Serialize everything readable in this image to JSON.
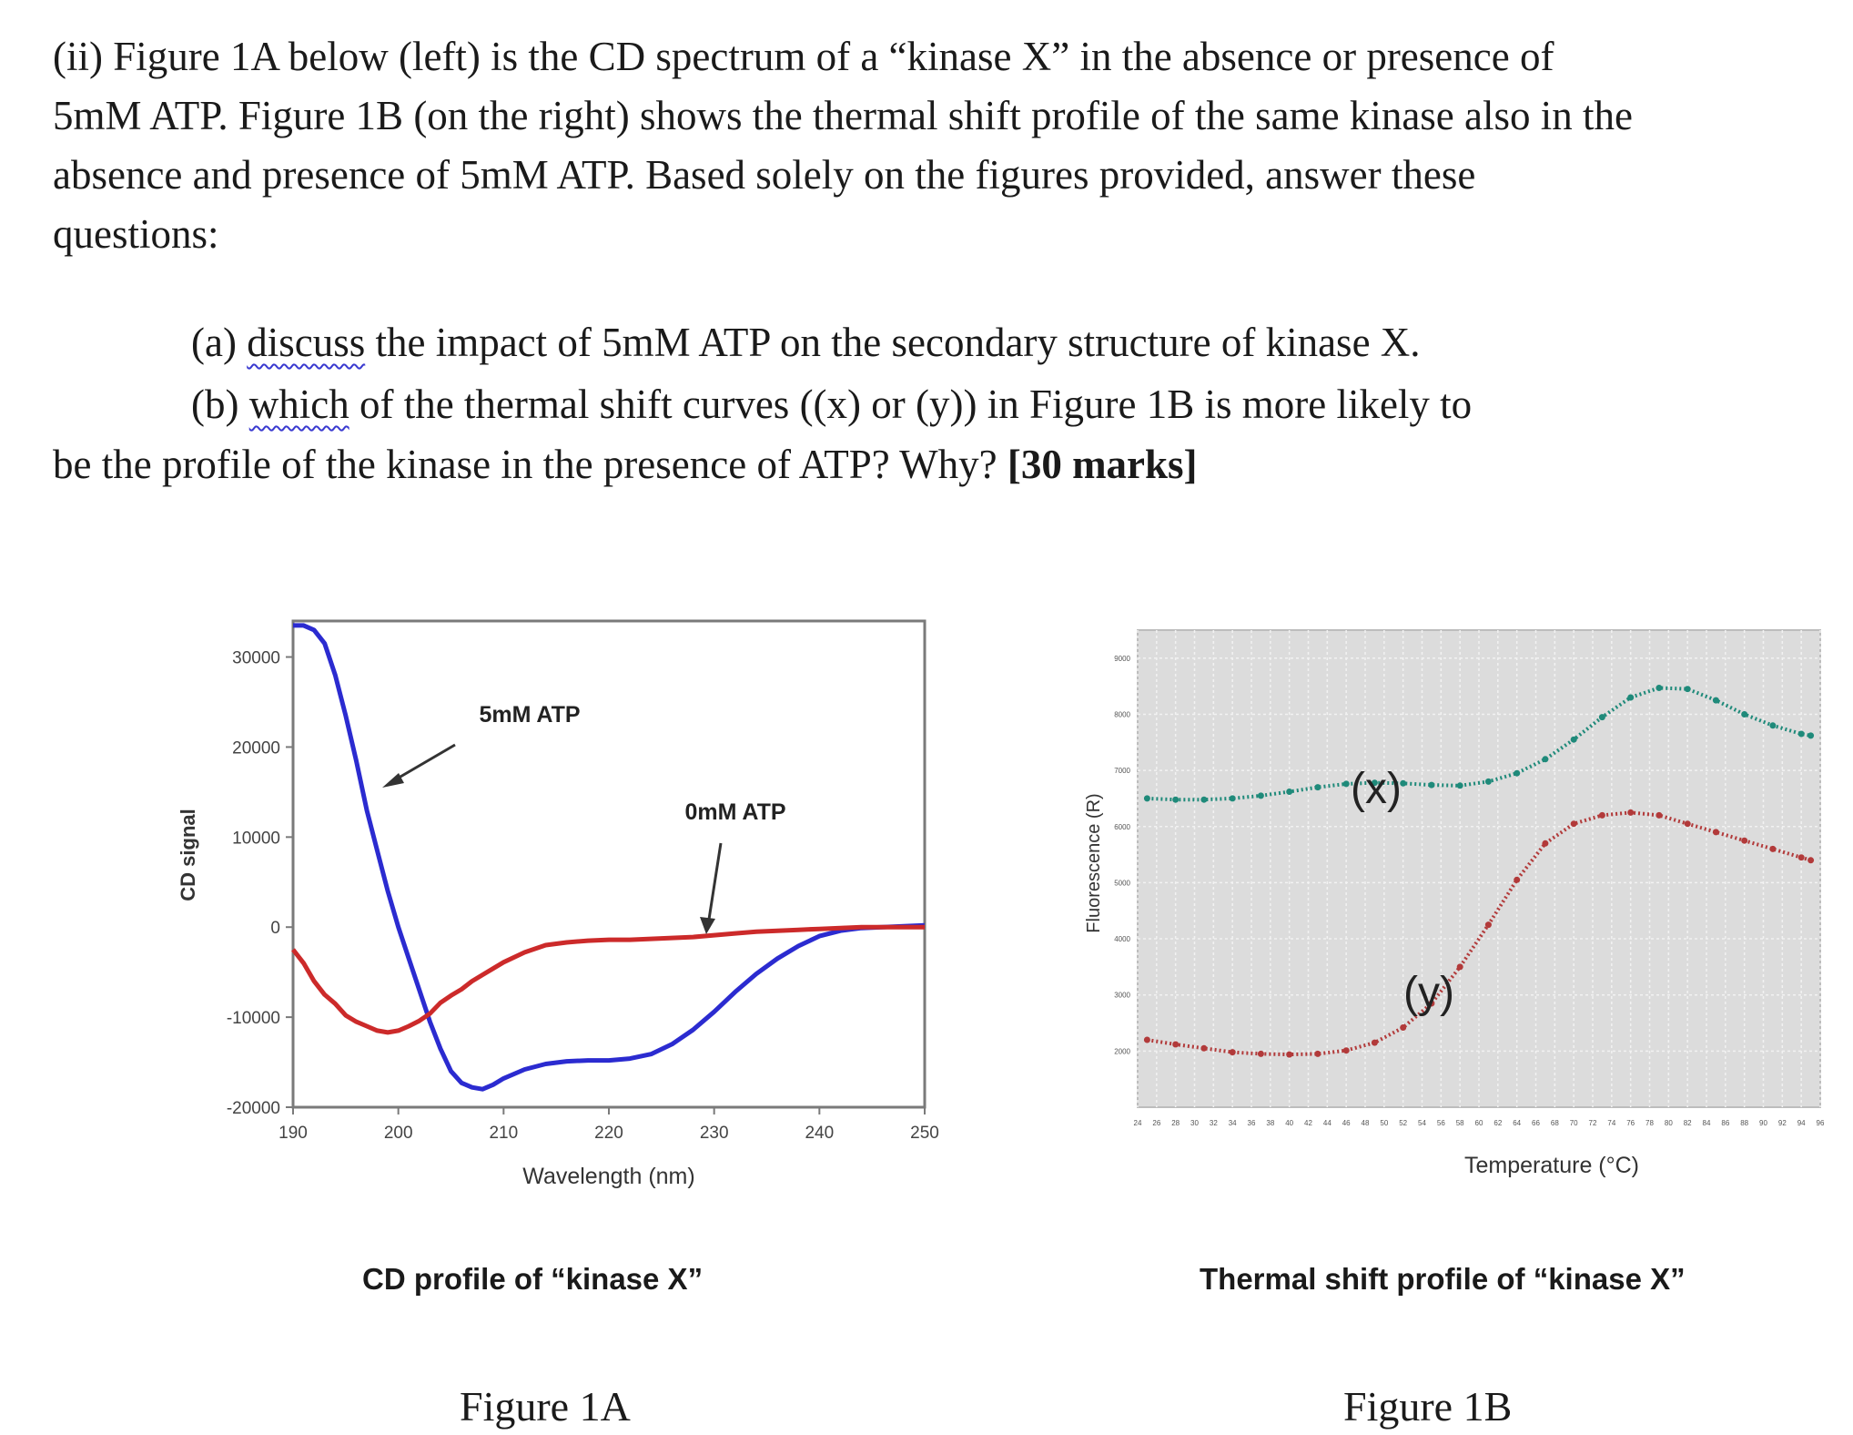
{
  "question": {
    "intro": "(ii) Figure 1A below (left) is the CD spectrum of a “kinase X” in the absence or presence of 5mM ATP. Figure 1B (on the right) shows the thermal shift profile of the same kinase also in the absence and presence of 5mM ATP. Based solely on the figures provided, answer these questions:",
    "part_a_prefix": "(a) ",
    "part_a_verb": "discuss",
    "part_a_rest": " the impact of 5mM ATP on the secondary structure of kinase X.",
    "part_b_prefix": "(b) ",
    "part_b_verb": "which",
    "part_b_rest": " of the thermal shift curves ((x) or (y)) in Figure 1B is more likely to",
    "part_b_line2": "be the profile of the kinase in the presence of ATP? Why? ",
    "marks": "[30 marks]"
  },
  "figure_1a": {
    "caption": "CD profile of “kinase X”",
    "figure_label": "Figure 1A",
    "chart_data": {
      "type": "line",
      "title": "",
      "xlabel": "Wavelength (nm)",
      "ylabel": "CD signal",
      "xlim": [
        190,
        250
      ],
      "ylim": [
        -20000,
        34000
      ],
      "xticks": [
        190,
        200,
        210,
        220,
        230,
        240,
        250
      ],
      "yticks": [
        -20000,
        -10000,
        0,
        10000,
        20000,
        30000
      ],
      "grid": false,
      "series": [
        {
          "name": "5mM ATP",
          "color": "#2b2bd0",
          "x": [
            190,
            191,
            192,
            193,
            194,
            195,
            196,
            197,
            198,
            199,
            200,
            201,
            202,
            203,
            204,
            205,
            206,
            207,
            208,
            209,
            210,
            212,
            214,
            216,
            218,
            220,
            222,
            224,
            226,
            228,
            230,
            232,
            234,
            236,
            238,
            240,
            242,
            244,
            246,
            248,
            250
          ],
          "y": [
            33500,
            33500,
            33000,
            31500,
            28000,
            23500,
            18500,
            13000,
            8500,
            4000,
            0,
            -3500,
            -7000,
            -10500,
            -13500,
            -16000,
            -17300,
            -17800,
            -18000,
            -17500,
            -16800,
            -15800,
            -15200,
            -14900,
            -14800,
            -14800,
            -14600,
            -14100,
            -13000,
            -11400,
            -9400,
            -7200,
            -5200,
            -3500,
            -2100,
            -1000,
            -400,
            -100,
            0,
            100,
            200
          ]
        },
        {
          "name": "0mM ATP",
          "color": "#cc2a2a",
          "x": [
            190,
            191,
            192,
            193,
            194,
            195,
            196,
            197,
            198,
            199,
            200,
            201,
            202,
            203,
            204,
            205,
            206,
            207,
            208,
            209,
            210,
            212,
            214,
            216,
            218,
            220,
            222,
            224,
            226,
            228,
            230,
            232,
            234,
            236,
            238,
            240,
            242,
            244,
            246,
            248,
            250
          ],
          "y": [
            -2500,
            -4000,
            -6000,
            -7500,
            -8500,
            -9800,
            -10500,
            -11000,
            -11500,
            -11700,
            -11500,
            -11000,
            -10400,
            -9600,
            -8400,
            -7600,
            -6900,
            -6000,
            -5300,
            -4600,
            -3900,
            -2800,
            -2000,
            -1700,
            -1500,
            -1400,
            -1400,
            -1300,
            -1200,
            -1100,
            -900,
            -700,
            -500,
            -400,
            -300,
            -200,
            -100,
            0,
            0,
            0,
            0
          ]
        }
      ],
      "annotations": [
        {
          "text": "5mM ATP",
          "target_series": "5mM ATP"
        },
        {
          "text": "0mM ATP",
          "target_series": "0mM ATP"
        }
      ]
    }
  },
  "figure_1b": {
    "caption": "Thermal shift profile of “kinase X”",
    "figure_label": "Figure 1B",
    "chart_data": {
      "type": "scatter",
      "title": "",
      "xlabel": "Temperature (°C)",
      "ylabel": "Fluorescence (R)",
      "grid": true,
      "xlim": [
        24,
        96
      ],
      "ylim": [
        1000,
        9500
      ],
      "xticks": [
        24,
        26,
        28,
        30,
        32,
        34,
        36,
        38,
        40,
        42,
        44,
        46,
        48,
        50,
        52,
        54,
        56,
        58,
        60,
        62,
        64,
        66,
        68,
        70,
        72,
        74,
        76,
        78,
        80,
        82,
        84,
        86,
        88,
        90,
        92,
        94,
        96
      ],
      "yticks": [
        2000,
        3000,
        4000,
        5000,
        6000,
        7000,
        8000,
        9000
      ],
      "series": [
        {
          "name": "(x)",
          "color": "#1f8a7a",
          "x": [
            25,
            28,
            31,
            34,
            37,
            40,
            43,
            46,
            49,
            52,
            55,
            58,
            61,
            64,
            67,
            70,
            73,
            76,
            79,
            82,
            85,
            88,
            91,
            94,
            95
          ],
          "y": [
            6500,
            6480,
            6480,
            6500,
            6550,
            6620,
            6700,
            6760,
            6780,
            6770,
            6740,
            6730,
            6800,
            6950,
            7200,
            7550,
            7950,
            8300,
            8470,
            8450,
            8250,
            8000,
            7800,
            7650,
            7620
          ]
        },
        {
          "name": "(y)",
          "color": "#b23a3a",
          "x": [
            25,
            28,
            31,
            34,
            37,
            40,
            43,
            46,
            49,
            52,
            55,
            58,
            61,
            64,
            67,
            70,
            73,
            76,
            79,
            82,
            85,
            88,
            91,
            94,
            95
          ],
          "y": [
            2200,
            2120,
            2050,
            1980,
            1950,
            1940,
            1950,
            2010,
            2150,
            2420,
            2850,
            3500,
            4250,
            5050,
            5700,
            6050,
            6200,
            6250,
            6200,
            6050,
            5900,
            5750,
            5600,
            5450,
            5400
          ]
        }
      ],
      "annotations": [
        {
          "text": "(x)",
          "target_series": "(x)"
        },
        {
          "text": "(y)",
          "target_series": "(y)"
        }
      ]
    }
  }
}
